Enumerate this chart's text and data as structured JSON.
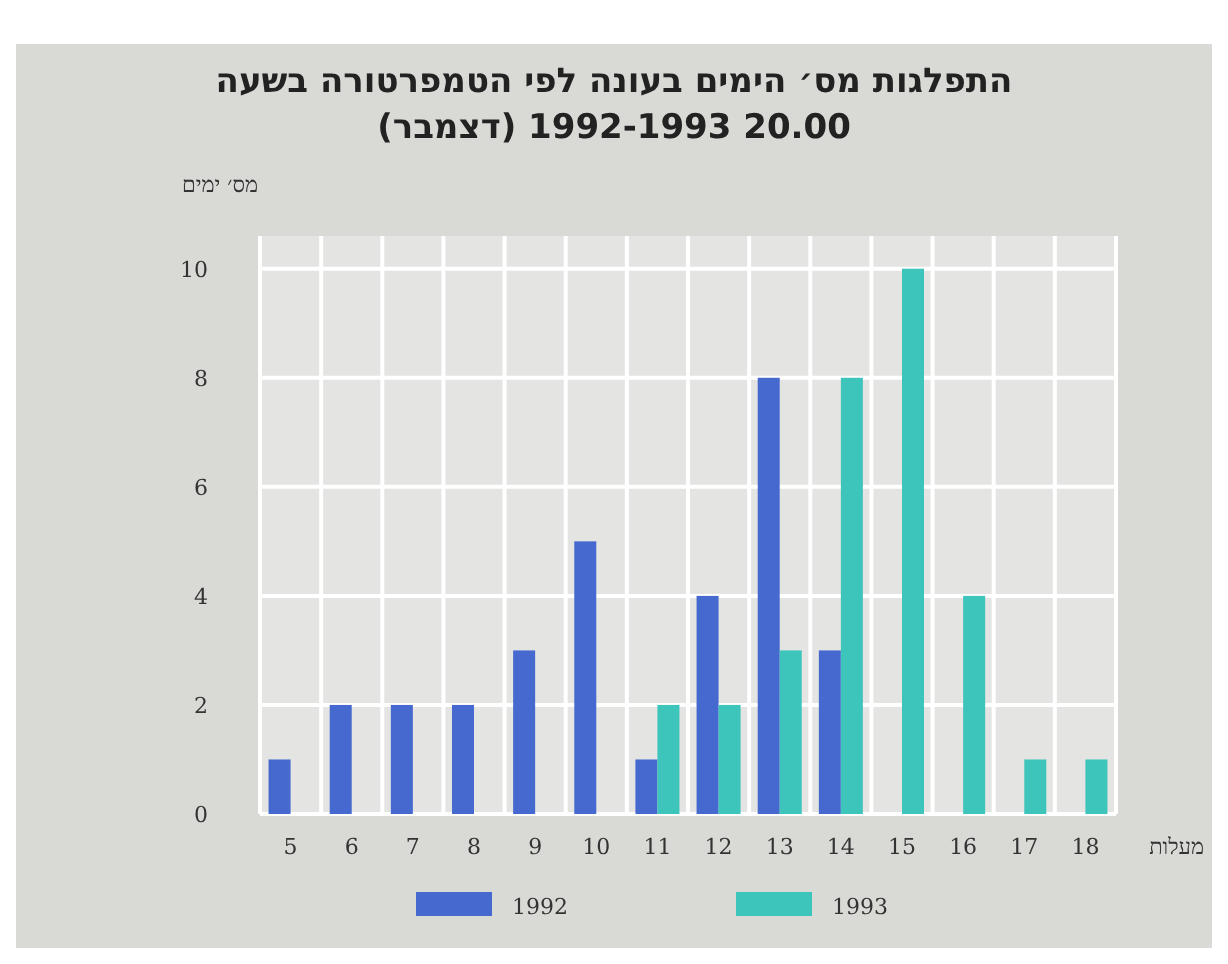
{
  "chart_data": {
    "type": "bar",
    "title": "התפלגות מס׳ הימים בעונה לפי הטמפרטורה בשעה 20.00 1992-1993 (דצמבר)",
    "ylabel": "מס׳ ימים",
    "xlabel": "מעלות",
    "categories": [
      "5",
      "6",
      "7",
      "8",
      "9",
      "10",
      "11",
      "12",
      "13",
      "14",
      "15",
      "16",
      "17",
      "18"
    ],
    "series": [
      {
        "name": "1992",
        "color": "#4569cf",
        "values": [
          1,
          2,
          2,
          2,
          3,
          5,
          1,
          4,
          8,
          3,
          null,
          null,
          null,
          null
        ]
      },
      {
        "name": "1993",
        "color": "#3dc4bb",
        "values": [
          null,
          null,
          null,
          null,
          null,
          null,
          2,
          2,
          3,
          8,
          10,
          4,
          1,
          1
        ]
      }
    ],
    "ylim": [
      0,
      10.6
    ],
    "yticks": [
      0,
      2,
      4,
      6,
      8,
      10
    ],
    "grid": true,
    "legend": "bottom"
  }
}
